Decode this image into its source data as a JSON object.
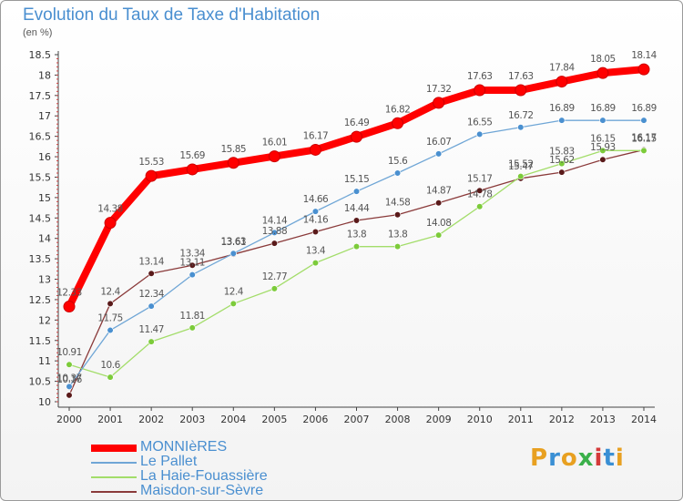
{
  "header": {
    "title": "Evolution du Taux de Taxe d'Habitation",
    "unit": "(en %)"
  },
  "logo": {
    "letters": [
      "P",
      "r",
      "o",
      "x",
      "i",
      "t",
      "i"
    ],
    "colors": [
      "#e8a020",
      "#3a8fd4",
      "#e8a020",
      "#3ab04a",
      "#d43a3a",
      "#3a8fd4",
      "#e8a020"
    ]
  },
  "chart_data": {
    "type": "line",
    "title": "Evolution du Taux de Taxe d'Habitation",
    "ylabel": "(en %)",
    "xlabel": "",
    "x": [
      "2000",
      "2001",
      "2002",
      "2003",
      "2004",
      "2005",
      "2006",
      "2007",
      "2008",
      "2009",
      "2010",
      "2011",
      "2012",
      "2013",
      "2014"
    ],
    "ylim": [
      10,
      18.5
    ],
    "yticks": [
      "10",
      "10.5",
      "11",
      "11.5",
      "12",
      "12.5",
      "13",
      "13.5",
      "14",
      "14.5",
      "15",
      "15.5",
      "16",
      "16.5",
      "17",
      "17.5",
      "18",
      "18.5"
    ],
    "grid": false,
    "legend": "bottom-left",
    "series": [
      {
        "name": "MONNIèRES",
        "color": "#ff0000",
        "point_color": "#ff0000",
        "label_color": "#555555",
        "values": [
          12.33,
          14.38,
          15.53,
          15.69,
          15.85,
          16.01,
          16.17,
          16.49,
          16.82,
          17.32,
          17.63,
          17.63,
          17.84,
          18.05,
          18.14
        ],
        "labels": [
          "12.33",
          "14.38",
          "15.53",
          "15.69",
          "15.85",
          "16.01",
          "16.17",
          "16.49",
          "16.82",
          "17.32",
          "17.63",
          "17.63",
          "17.84",
          "18.05",
          "18.14"
        ]
      },
      {
        "name": "Le Pallet",
        "color": "#6fa6d6",
        "point_color": "#4a90d0",
        "label_color": "#555555",
        "values": [
          10.37,
          11.75,
          12.34,
          13.11,
          13.63,
          14.14,
          14.66,
          15.15,
          15.6,
          16.07,
          16.55,
          16.72,
          16.89,
          16.89,
          16.89
        ],
        "labels": [
          "10.37",
          "11.75",
          "12.34",
          "13.11",
          "13.63",
          "14.14",
          "14.66",
          "15.15",
          "15.6",
          "16.07",
          "16.55",
          "16.72",
          "16.89",
          "16.89",
          "16.89"
        ]
      },
      {
        "name": "La Haie-Fouassière",
        "color": "#a3dd6a",
        "point_color": "#7ccb3a",
        "label_color": "#555555",
        "values": [
          10.91,
          10.6,
          11.47,
          11.81,
          12.4,
          12.77,
          13.4,
          13.8,
          13.8,
          14.08,
          14.78,
          15.52,
          15.83,
          16.15,
          16.15
        ],
        "labels": [
          "10.91",
          "10.6",
          "11.47",
          "11.81",
          "12.4",
          "12.77",
          "13.4",
          "13.8",
          "13.8",
          "14.08",
          "14.78",
          "15.52",
          "15.83",
          "16.15",
          "16.15"
        ]
      },
      {
        "name": "Maisdon-sur-Sèvre",
        "color": "#8a3a3a",
        "point_color": "#5a1a1a",
        "label_color": "#555555",
        "values": [
          10.16,
          12.4,
          13.14,
          13.34,
          13.61,
          13.88,
          14.16,
          14.44,
          14.58,
          14.87,
          15.17,
          15.47,
          15.62,
          15.93,
          16.17
        ],
        "labels": [
          "10.16",
          "12.4",
          "13.14",
          "13.34",
          "13.61",
          "13.88",
          "14.16",
          "14.44",
          "14.58",
          "14.87",
          "15.17",
          "15.47",
          "15.62",
          "15.93",
          "16.17"
        ]
      }
    ]
  }
}
